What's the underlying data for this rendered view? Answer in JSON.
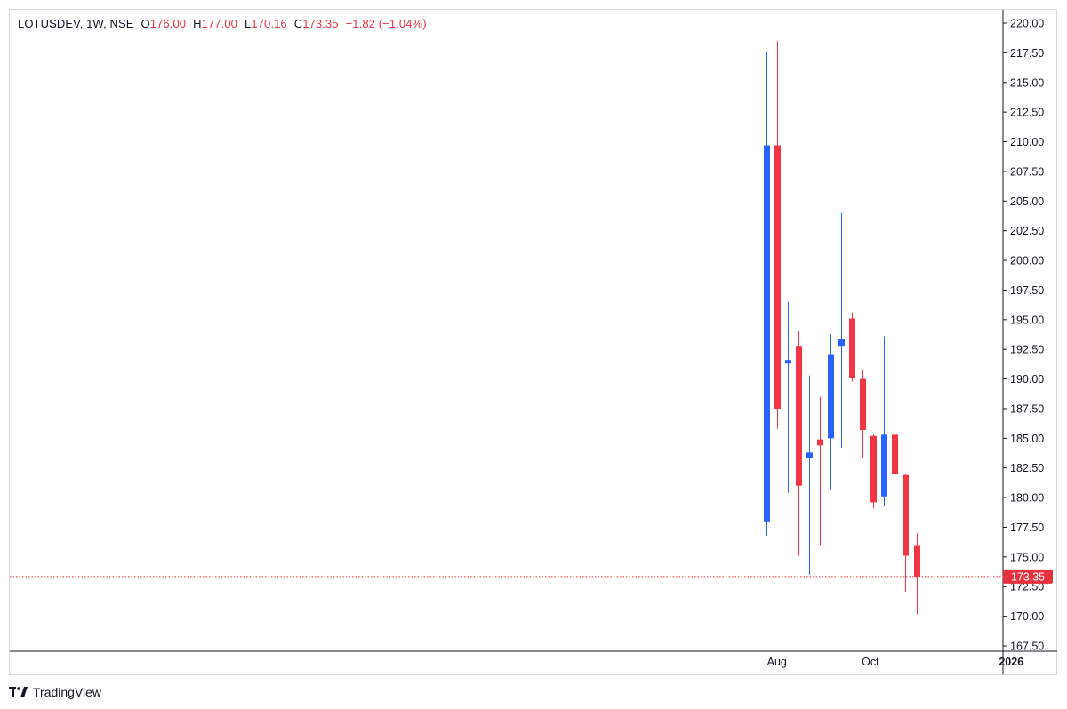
{
  "legend": {
    "symbol": "LOTUSDEV, 1W, NSE",
    "o_label": "O",
    "o_value": "176.00",
    "h_label": "H",
    "h_value": "177.00",
    "l_label": "L",
    "l_value": "170.16",
    "c_label": "C",
    "c_value": "173.35",
    "change": "−1.82 (−1.04%)"
  },
  "brand": {
    "name": "TradingView",
    "logo": "tradingview-logo-icon"
  },
  "colors": {
    "up": "#2962ff",
    "down": "#f23645",
    "text": "#131722",
    "border": "#d6d8de",
    "last_price": "#e8313f"
  },
  "chart_data": {
    "type": "candlestick",
    "title": "LOTUSDEV, 1W, NSE",
    "y_ticks": [
      "220.00",
      "217.50",
      "215.00",
      "212.50",
      "210.00",
      "207.50",
      "205.00",
      "202.50",
      "200.00",
      "197.50",
      "195.00",
      "192.50",
      "190.00",
      "187.50",
      "185.00",
      "182.50",
      "180.00",
      "177.50",
      "175.00",
      "172.50",
      "170.00",
      "167.50"
    ],
    "ylim": [
      167.5,
      220.0
    ],
    "x_ticks": [
      {
        "label": "Aug",
        "date": "2025-08-01",
        "bold": false
      },
      {
        "label": "Oct",
        "date": "2025-10-01",
        "bold": false
      },
      {
        "label": "2026",
        "date": "2026-01-01",
        "bold": true
      }
    ],
    "xlim": [
      "2025-07-24",
      "2026-01-20"
    ],
    "last_price": "173.35",
    "grid": false,
    "candles": [
      {
        "date": "2025-07-25",
        "open": 178.0,
        "high": 217.6,
        "low": 176.8,
        "close": 209.7
      },
      {
        "date": "2025-08-01",
        "open": 209.7,
        "high": 218.5,
        "low": 185.8,
        "close": 187.5
      },
      {
        "date": "2025-08-08",
        "open": 191.3,
        "high": 196.5,
        "low": 180.4,
        "close": 191.6
      },
      {
        "date": "2025-08-15",
        "open": 192.8,
        "high": 194.0,
        "low": 175.1,
        "close": 181.0
      },
      {
        "date": "2025-08-22",
        "open": 183.3,
        "high": 190.3,
        "low": 173.5,
        "close": 183.8
      },
      {
        "date": "2025-08-29",
        "open": 184.9,
        "high": 188.5,
        "low": 176.0,
        "close": 184.4
      },
      {
        "date": "2025-09-05",
        "open": 185.0,
        "high": 193.8,
        "low": 180.7,
        "close": 192.1
      },
      {
        "date": "2025-09-12",
        "open": 192.8,
        "high": 204.0,
        "low": 184.2,
        "close": 193.4
      },
      {
        "date": "2025-09-19",
        "open": 195.1,
        "high": 195.6,
        "low": 189.8,
        "close": 190.1
      },
      {
        "date": "2025-09-26",
        "open": 190.0,
        "high": 190.8,
        "low": 183.4,
        "close": 185.7
      },
      {
        "date": "2025-10-03",
        "open": 185.2,
        "high": 185.4,
        "low": 179.1,
        "close": 179.6
      },
      {
        "date": "2025-10-10",
        "open": 180.1,
        "high": 193.6,
        "low": 179.3,
        "close": 185.3
      },
      {
        "date": "2025-10-17",
        "open": 185.3,
        "high": 190.4,
        "low": 181.8,
        "close": 182.0
      },
      {
        "date": "2025-10-24",
        "open": 181.9,
        "high": 182.0,
        "low": 172.1,
        "close": 175.1
      },
      {
        "date": "2025-10-31",
        "open": 176.0,
        "high": 177.0,
        "low": 170.16,
        "close": 173.35
      }
    ]
  }
}
